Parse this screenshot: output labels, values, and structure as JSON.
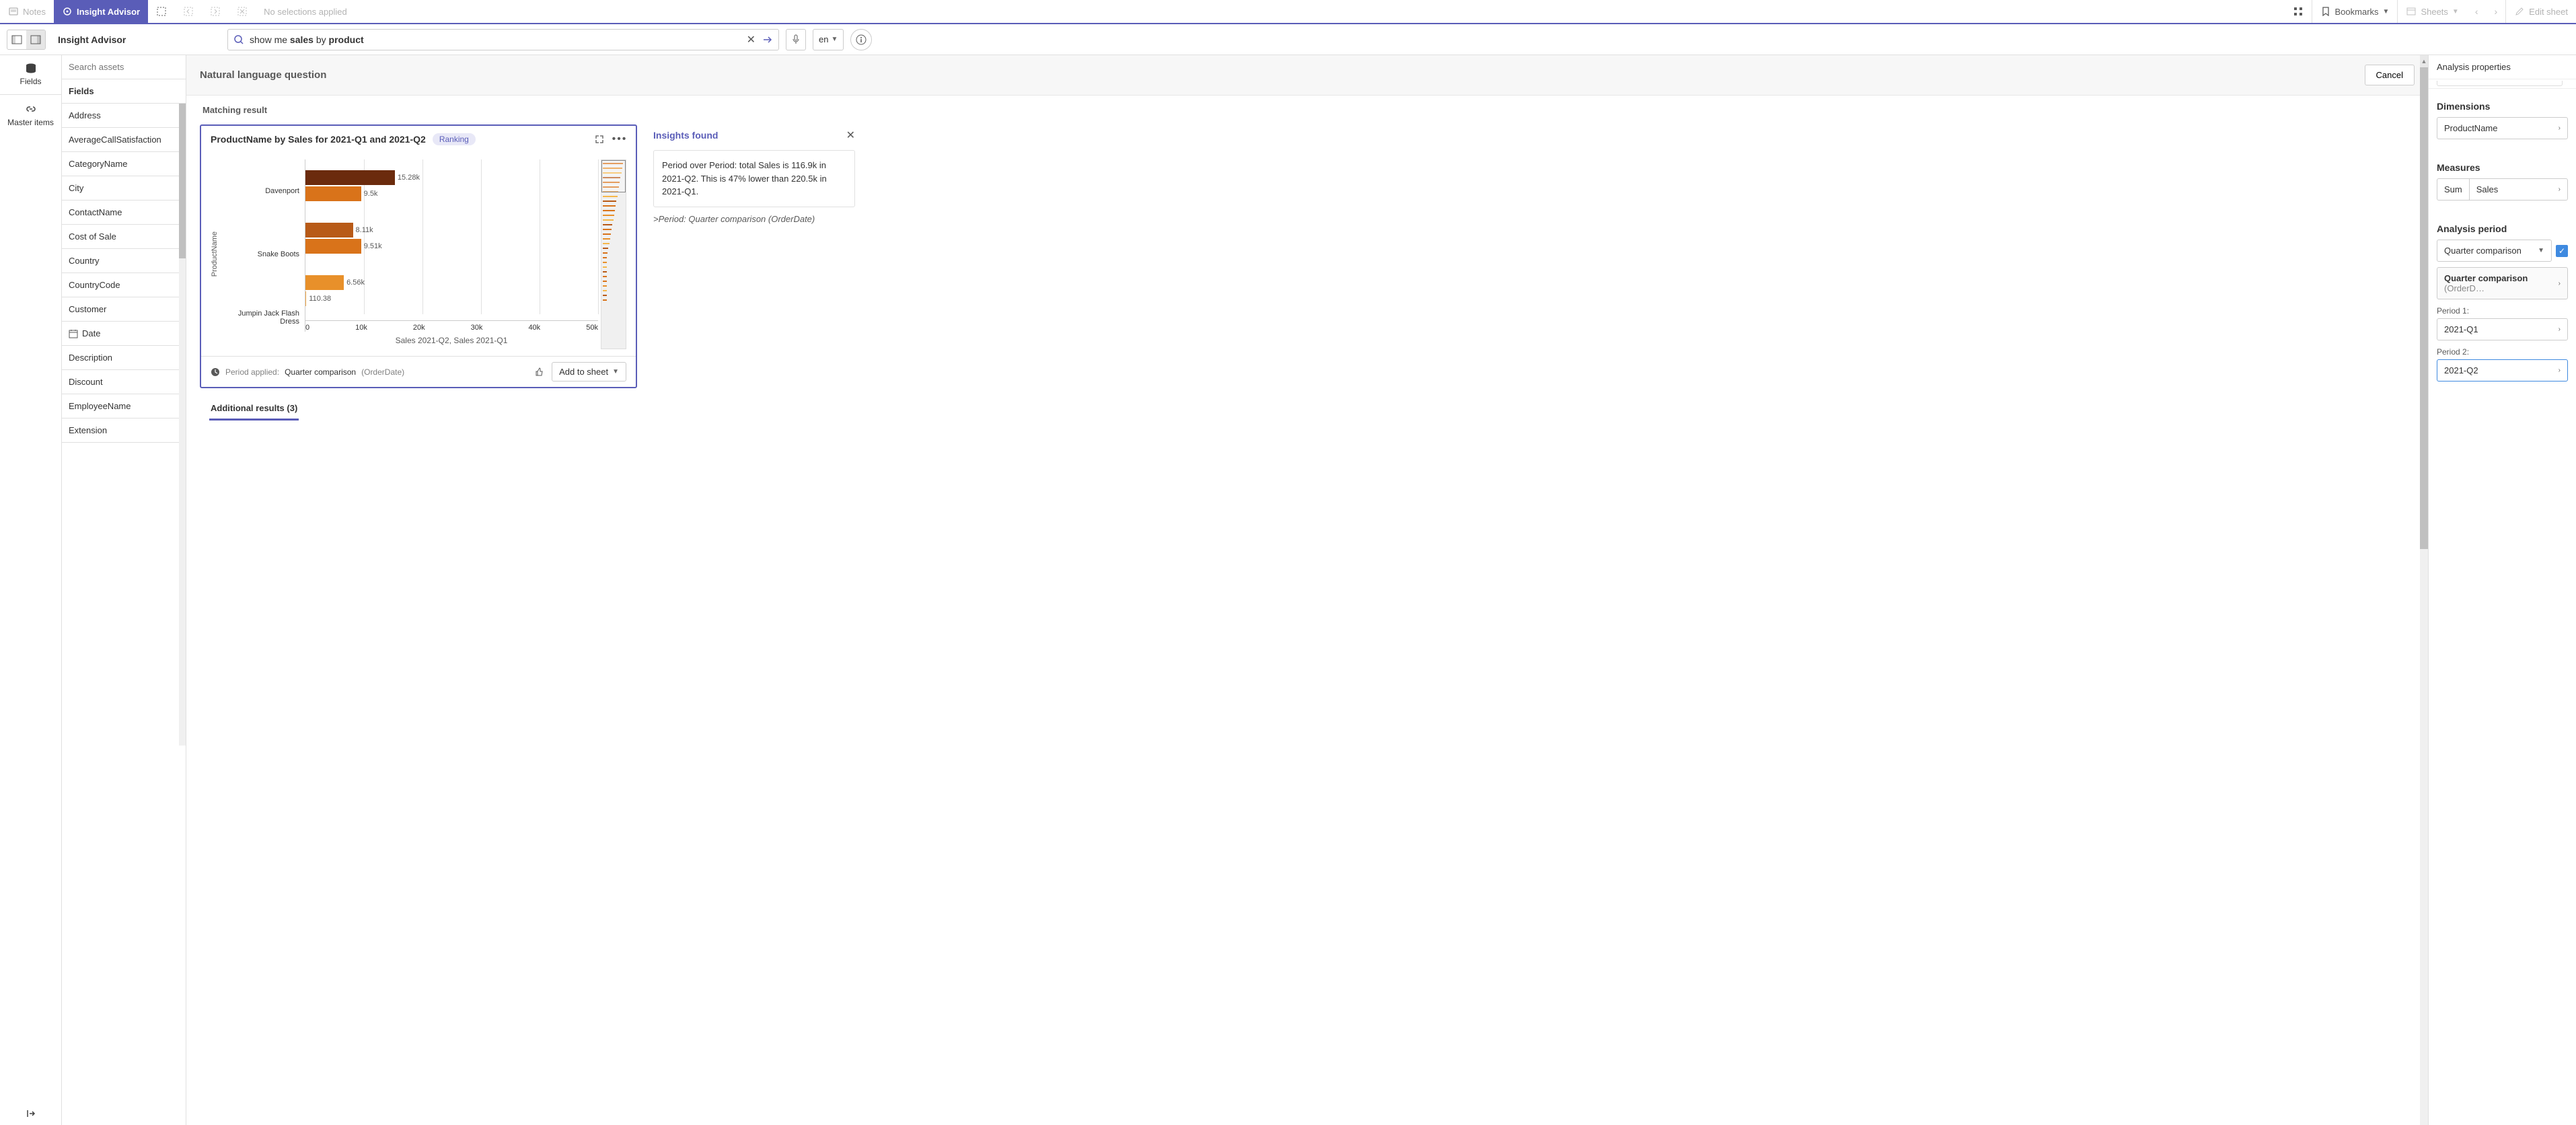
{
  "toolbar": {
    "notes": "Notes",
    "insight_advisor": "Insight Advisor",
    "no_selections": "No selections applied",
    "bookmarks": "Bookmarks",
    "sheets": "Sheets",
    "edit_sheet": "Edit sheet"
  },
  "subbar": {
    "page_title": "Insight Advisor",
    "search_placeholder": "",
    "search_value_prefix": "show me ",
    "search_bold1": "sales",
    "search_mid": " by ",
    "search_bold2": "product",
    "lang": "en"
  },
  "rail": {
    "fields": "Fields",
    "master_items": "Master items"
  },
  "assets": {
    "search_placeholder": "Search assets",
    "header": "Fields",
    "items": [
      "Address",
      "AverageCallSatisfaction",
      "CategoryName",
      "City",
      "ContactName",
      "Cost of Sale",
      "Country",
      "CountryCode",
      "Customer",
      "Date",
      "Description",
      "Discount",
      "EmployeeName",
      "Extension"
    ],
    "date_index": 9
  },
  "center": {
    "nlq_title": "Natural language question",
    "cancel": "Cancel",
    "matching": "Matching result",
    "additional": "Additional results (3)"
  },
  "chart": {
    "title": "ProductName by Sales for 2021-Q1 and 2021-Q2",
    "badge": "Ranking",
    "y_axis_label": "ProductName",
    "x_axis_label": "Sales 2021-Q2, Sales 2021-Q1",
    "categories": [
      "Davenport",
      "Snake Boots",
      "Jumpin Jack Flash Dress"
    ],
    "series": [
      {
        "name": "2021-Q2",
        "color": "#6b2b0d",
        "values": [
          15.28,
          8.11,
          6.56
        ],
        "labels": [
          "15.28k",
          "8.11k",
          "6.56k"
        ]
      },
      {
        "name": "2021-Q1",
        "color": "#d9731a",
        "values": [
          9.5,
          9.51,
          0.11038
        ],
        "labels": [
          "9.5k",
          "9.51k",
          "110.38"
        ]
      }
    ],
    "third_group_colors": [
      "#e8902a",
      "#f5a84a"
    ],
    "x_max": 50,
    "x_ticks": [
      "0",
      "10k",
      "20k",
      "30k",
      "40k",
      "50k"
    ],
    "period_applied_prefix": "Period applied:",
    "period_applied_main": "Quarter comparison",
    "period_applied_suffix": "(OrderDate)",
    "add_to_sheet": "Add to sheet"
  },
  "insights": {
    "title": "Insights found",
    "body": "Period over Period: total Sales is 116.9k in 2021-Q2. This is 47% lower than 220.5k in 2021-Q1.",
    "period_line": ">Period: Quarter comparison (OrderDate)"
  },
  "props": {
    "title": "Analysis properties",
    "dimensions": "Dimensions",
    "dim_value": "ProductName",
    "measures": "Measures",
    "measure_agg": "Sum",
    "measure_field": "Sales",
    "analysis_period": "Analysis period",
    "period_type": "Quarter comparison",
    "period_detail_prefix": "Quarter comparison",
    "period_detail_suffix": "(OrderD…",
    "period1_label": "Period 1:",
    "period1_value": "2021-Q1",
    "period2_label": "Period 2:",
    "period2_value": "2021-Q2"
  }
}
